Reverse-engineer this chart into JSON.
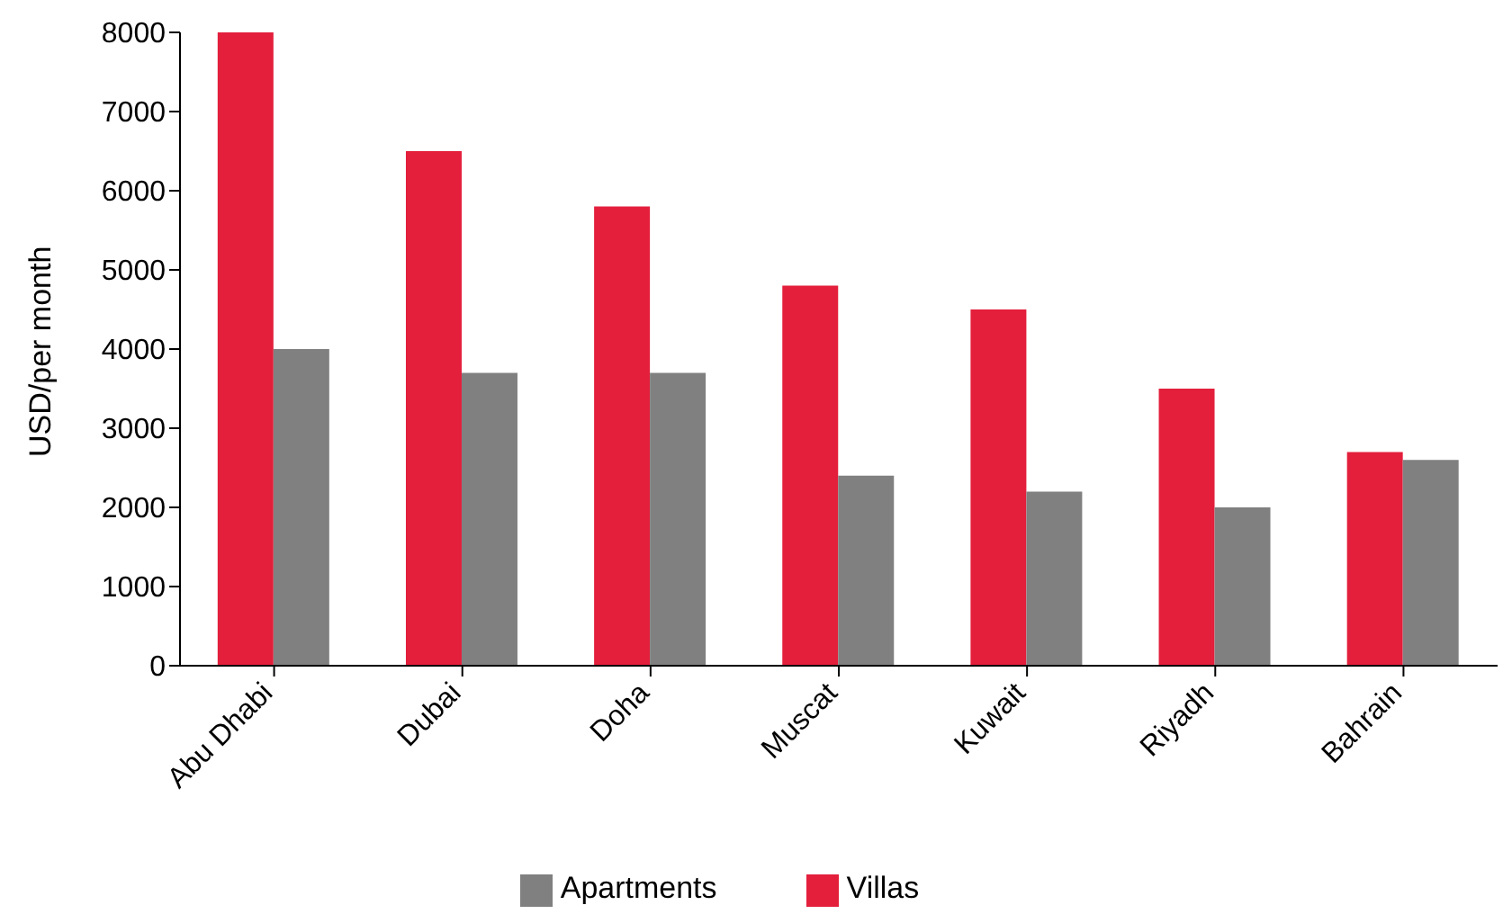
{
  "chart_data": {
    "type": "bar",
    "ylabel": "USD/per month",
    "categories": [
      "Abu Dhabi",
      "Dubai",
      "Doha",
      "Muscat",
      "Kuwait",
      "Riyadh",
      "Bahrain"
    ],
    "series": [
      {
        "name": "Villas",
        "color": "#e31f3c",
        "values": [
          8000,
          6500,
          5800,
          4800,
          4500,
          3500,
          2700
        ]
      },
      {
        "name": "Apartments",
        "color": "#808080",
        "values": [
          4000,
          3700,
          3700,
          2400,
          2200,
          2000,
          2600
        ]
      }
    ],
    "ylim": [
      0,
      8000
    ],
    "yticks": [
      0,
      1000,
      2000,
      3000,
      4000,
      5000,
      6000,
      7000,
      8000
    ],
    "grid": false,
    "legend": "bottom"
  }
}
